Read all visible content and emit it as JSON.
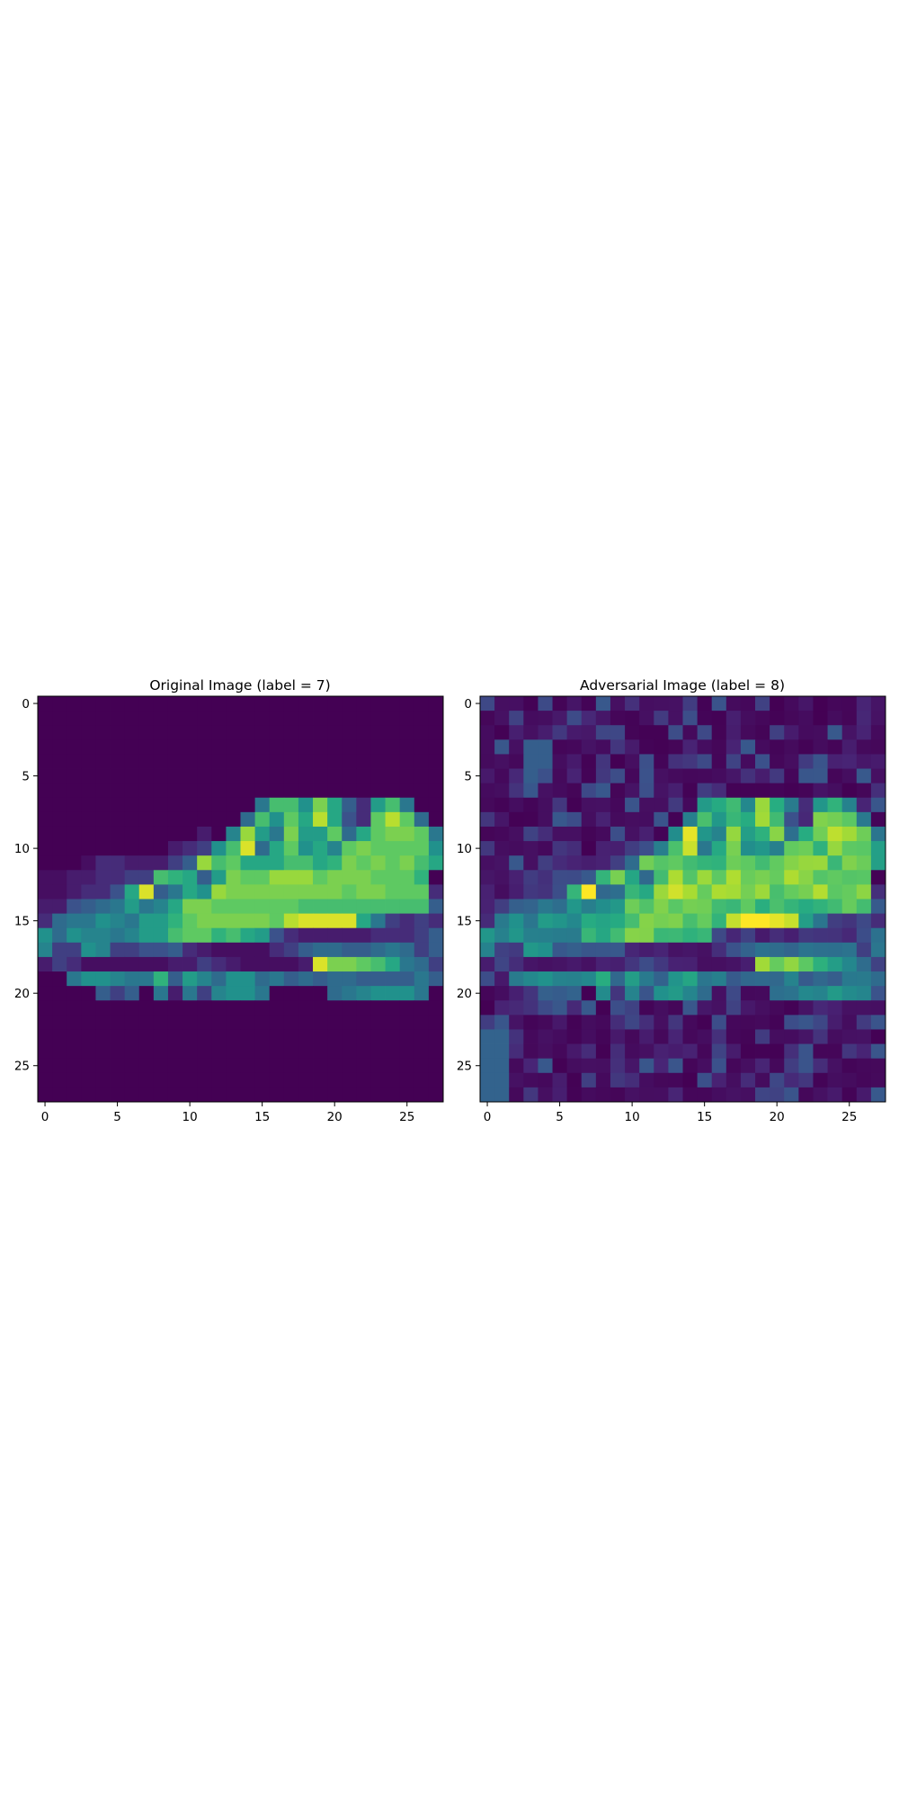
{
  "chart_data": [
    {
      "type": "heatmap",
      "title": "Original Image (label = 7)",
      "xlabel": "",
      "ylabel": "",
      "xticks": [
        0,
        5,
        10,
        15,
        20,
        25
      ],
      "yticks": [
        0,
        5,
        10,
        15,
        20,
        25
      ],
      "xlim": [
        -0.5,
        27.5
      ],
      "ylim": [
        27.5,
        -0.5
      ],
      "colormap": "viridis",
      "value_range": [
        0,
        1
      ],
      "rows": 28,
      "cols": 28,
      "grid": false,
      "values": "see script"
    },
    {
      "type": "heatmap",
      "title": "Adversarial Image (label = 8)",
      "xlabel": "",
      "ylabel": "",
      "xticks": [
        0,
        5,
        10,
        15,
        20,
        25
      ],
      "yticks": [
        0,
        5,
        10,
        15,
        20,
        25
      ],
      "xlim": [
        -0.5,
        27.5
      ],
      "ylim": [
        27.5,
        -0.5
      ],
      "colormap": "viridis",
      "value_range": [
        0,
        1
      ],
      "rows": 28,
      "cols": 28,
      "grid": false,
      "values": "see script"
    }
  ],
  "colors": {
    "viridis_low": "#440154",
    "viridis_mid": "#21918c",
    "viridis_high": "#fde725"
  }
}
